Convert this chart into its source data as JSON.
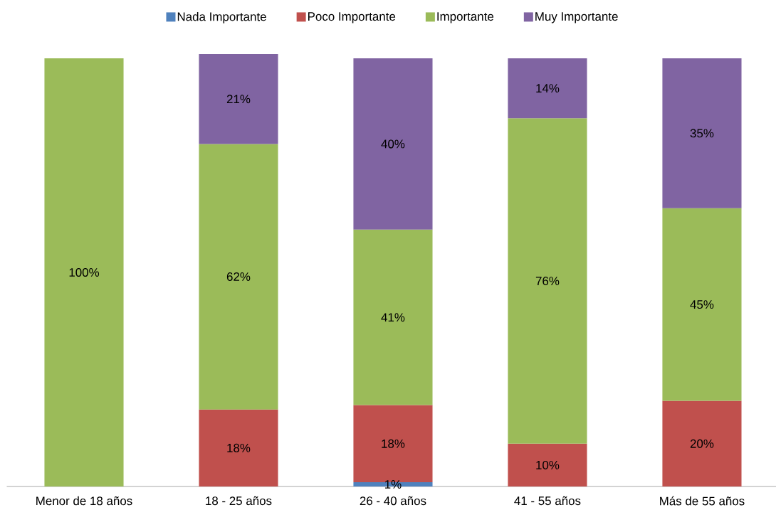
{
  "chart_data": {
    "type": "bar",
    "stacked": true,
    "legend": "top",
    "categories": [
      "Menor de 18 años",
      "18 - 25 años",
      "26 - 40 años",
      "41 - 55 años",
      "Más de 55 años"
    ],
    "ylim": [
      0,
      101
    ],
    "tick_labels": "x",
    "series": [
      {
        "name": "Nada Importante",
        "color": "#4f81bd",
        "values": [
          null,
          null,
          1,
          null,
          null
        ],
        "value_labels": [
          null,
          null,
          "1%",
          null,
          null
        ]
      },
      {
        "name": "Poco Importante",
        "color": "#c0504d",
        "values": [
          null,
          18,
          18,
          10,
          20
        ],
        "value_labels": [
          null,
          "18%",
          "18%",
          "10%",
          "20%"
        ]
      },
      {
        "name": "Importante",
        "color": "#9bbb59",
        "values": [
          100,
          62,
          41,
          76,
          45
        ],
        "value_labels": [
          "100%",
          "62%",
          "41%",
          "76%",
          "45%"
        ]
      },
      {
        "name": "Muy Importante",
        "color": "#8064a2",
        "values": [
          null,
          21,
          40,
          14,
          35
        ],
        "value_labels": [
          null,
          "21%",
          "40%",
          "14%",
          "35%"
        ]
      }
    ]
  }
}
